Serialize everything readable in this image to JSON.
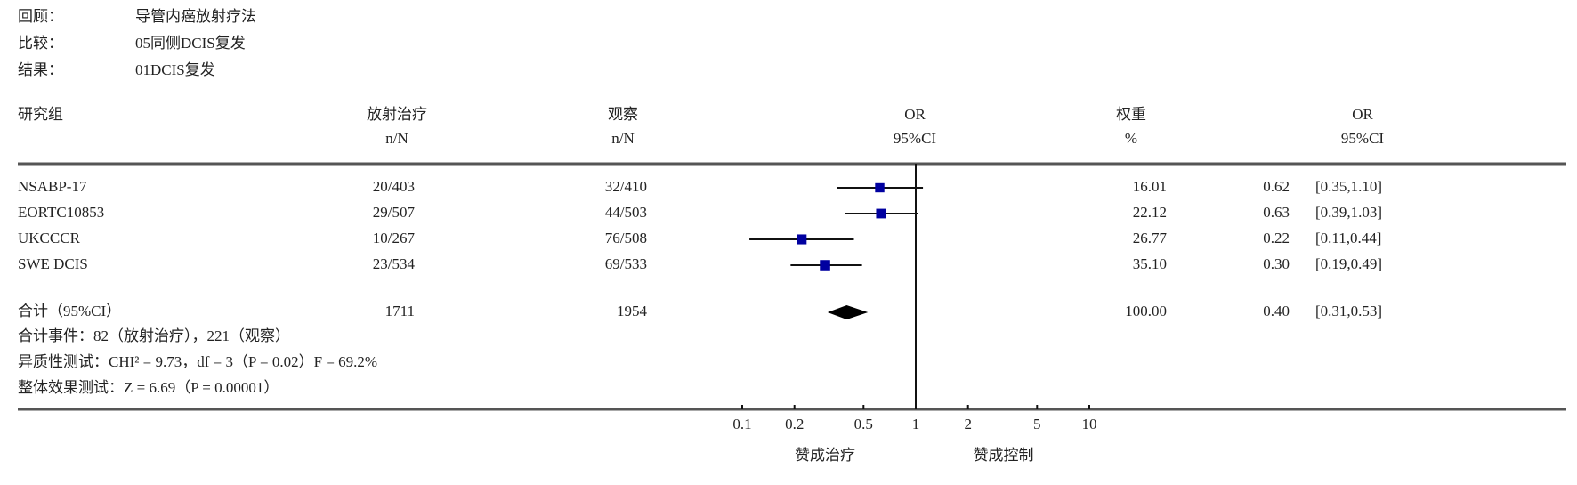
{
  "chart_data": {
    "type": "forest",
    "header": [
      {
        "label": "回顾：",
        "value": "导管内癌放射疗法"
      },
      {
        "label": "比较：",
        "value": "05同侧DCIS复发"
      },
      {
        "label": "结果：",
        "value": "01DCIS复发"
      }
    ],
    "columns": {
      "study": "研究组",
      "treat": [
        "放射治疗",
        "n/N"
      ],
      "control": [
        "观察",
        "n/N"
      ],
      "or_plot": [
        "OR",
        "95%CI"
      ],
      "weight": [
        "权重",
        "%"
      ],
      "or_ci": [
        "OR",
        "95%CI"
      ]
    },
    "studies": [
      {
        "name": "NSABP-17",
        "treat": "20/403",
        "control": "32/410",
        "weight": 16.01,
        "weight_label": "16.01",
        "or": 0.62,
        "or_label": "0.62",
        "ci_low": 0.35,
        "ci_high": 1.1,
        "ci_label": "[0.35,1.10]"
      },
      {
        "name": "EORTC10853",
        "treat": "29/507",
        "control": "44/503",
        "weight": 22.12,
        "weight_label": "22.12",
        "or": 0.63,
        "or_label": "0.63",
        "ci_low": 0.39,
        "ci_high": 1.03,
        "ci_label": "[0.39,1.03]"
      },
      {
        "name": "UKCCCR",
        "treat": "10/267",
        "control": "76/508",
        "weight": 26.77,
        "weight_label": "26.77",
        "or": 0.22,
        "or_label": "0.22",
        "ci_low": 0.11,
        "ci_high": 0.44,
        "ci_label": "[0.11,0.44]"
      },
      {
        "name": "SWE DCIS",
        "treat": "23/534",
        "control": "69/533",
        "weight": 35.1,
        "weight_label": "35.10",
        "or": 0.3,
        "or_label": "0.30",
        "ci_low": 0.19,
        "ci_high": 0.49,
        "ci_label": "[0.19,0.49]"
      }
    ],
    "total": {
      "name": "合计（95%CI）",
      "treat": 1711,
      "control": 1954,
      "weight": 100,
      "weight_label": "100.00",
      "or": 0.4,
      "or_label": "0.40",
      "ci_low": 0.31,
      "ci_high": 0.53,
      "ci_label": "[0.31,0.53]"
    },
    "footnotes": [
      "合计事件：82（放射治疗），221（观察）",
      "异质性测试：CHI² = 9.73，df = 3（P = 0.02）F = 69.2%",
      "整体效果测试：Z = 6.69（P = 0.00001）"
    ],
    "xscale": "log",
    "xlim": [
      0.1,
      10
    ],
    "xticks": [
      0.1,
      0.2,
      0.5,
      1,
      2,
      5,
      10
    ],
    "axis_labels": [
      "赞成治疗",
      "赞成控制"
    ],
    "marker_color": "#0000a0"
  }
}
